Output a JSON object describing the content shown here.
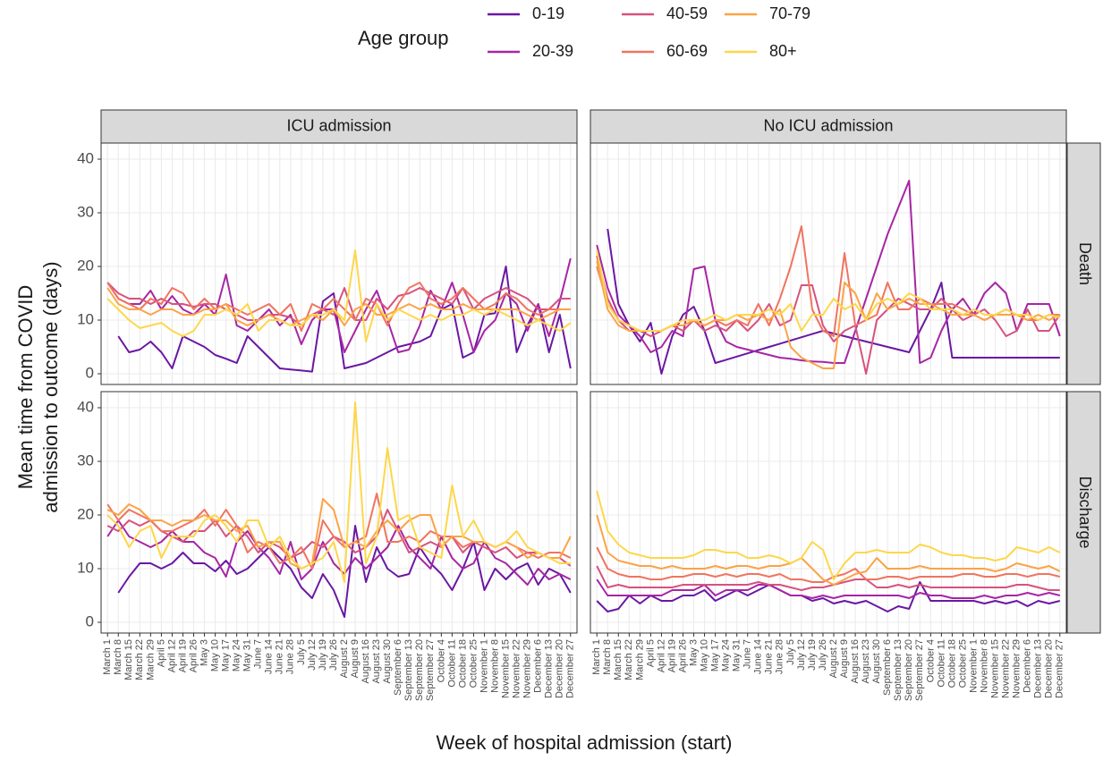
{
  "chart_data": {
    "type": "line",
    "legend_title": "Age group",
    "x_label": "Week of hospital admission (start)",
    "y_label": [
      "Mean time from COVID",
      "admission to outcome (days)"
    ],
    "facet_columns": [
      "ICU admission",
      "No ICU admission"
    ],
    "facet_rows": [
      "Death",
      "Discharge"
    ],
    "categories": [
      "March 1",
      "March 8",
      "March 15",
      "March 22",
      "March 29",
      "April 5",
      "April 12",
      "April 19",
      "April 26",
      "May 3",
      "May 10",
      "May 17",
      "May 24",
      "May 31",
      "June 7",
      "June 14",
      "June 21",
      "June 28",
      "July 5",
      "July 12",
      "July 19",
      "July 26",
      "August 2",
      "August 9",
      "August 16",
      "August 23",
      "August 30",
      "September 6",
      "September 13",
      "September 20",
      "September 27",
      "October 4",
      "October 11",
      "October 18",
      "October 25",
      "November 1",
      "November 8",
      "November 15",
      "November 22",
      "November 29",
      "December 6",
      "December 13",
      "December 20",
      "December 27"
    ],
    "series": [
      {
        "name": "0-19",
        "color": "#6a17a3"
      },
      {
        "name": "20-39",
        "color": "#a626a4"
      },
      {
        "name": "40-59",
        "color": "#d6527f"
      },
      {
        "name": "60-69",
        "color": "#f07460"
      },
      {
        "name": "70-79",
        "color": "#fba346"
      },
      {
        "name": "80+",
        "color": "#fdd74a"
      }
    ],
    "ylim": [
      -2,
      43
    ],
    "yticks": [
      0,
      10,
      20,
      30,
      40
    ],
    "grid": true,
    "panels": [
      [
        [
          [
            null,
            7,
            4,
            4.5,
            6,
            4,
            1,
            7,
            6,
            5,
            3.5,
            2.8,
            2,
            7,
            5,
            3,
            1,
            0.8,
            0.6,
            0.4,
            13.5,
            15,
            1,
            1.5,
            2,
            3,
            4,
            5,
            5.5,
            6,
            7,
            12,
            13,
            3,
            4,
            11,
            11.3,
            20,
            4,
            9,
            13,
            4,
            11,
            1
          ],
          [
            17,
            14,
            13,
            13,
            15.5,
            12,
            14.5,
            12,
            11,
            13,
            11,
            18.5,
            9,
            8,
            10,
            12,
            9,
            11,
            5.5,
            10,
            12,
            12,
            4,
            8,
            12,
            15.5,
            10,
            4,
            4.5,
            9,
            15.5,
            12,
            17,
            11,
            4,
            8,
            10,
            15,
            13,
            8,
            13,
            7,
            13.5,
            21.5
          ],
          [
            17,
            15,
            14,
            14,
            13,
            14,
            13,
            13,
            12.5,
            13,
            13,
            12,
            11,
            10,
            10,
            11,
            11,
            10.5,
            9,
            11,
            12,
            11,
            16,
            10,
            10,
            14,
            12,
            14.5,
            15,
            16,
            15,
            14,
            13,
            16,
            12,
            14,
            15,
            16,
            15,
            14,
            12,
            12,
            14,
            14
          ],
          [
            17,
            14,
            13,
            12,
            14,
            13,
            16,
            15,
            12,
            14,
            12,
            13,
            12,
            11,
            12,
            13,
            11,
            13,
            8,
            13,
            12,
            14,
            12,
            10,
            14,
            13,
            9,
            13,
            16,
            17,
            14,
            13,
            14,
            16,
            14,
            12,
            13,
            15,
            14,
            12,
            11,
            12,
            12,
            12
          ],
          [
            16,
            13,
            12,
            12,
            11,
            12,
            12,
            11,
            11,
            12,
            12,
            13,
            10,
            9,
            10,
            11,
            10,
            9,
            10,
            11,
            10,
            12,
            9,
            12,
            13,
            11,
            11,
            12,
            13,
            12,
            13,
            12,
            12,
            13,
            12,
            12,
            12,
            12,
            12,
            11,
            10,
            11,
            12,
            12
          ],
          [
            14,
            12,
            10,
            8.5,
            9,
            9.5,
            8,
            7,
            8,
            11,
            11,
            12,
            11,
            13,
            8,
            10,
            10,
            9,
            9,
            11,
            11,
            12,
            10,
            23,
            6,
            13,
            10,
            12,
            11,
            10,
            11,
            10,
            11,
            11,
            12,
            11,
            12,
            11,
            10,
            9,
            10,
            9,
            8,
            9.5
          ]
        ],
        [
          [
            null,
            27,
            13,
            9,
            6,
            9.5,
            0,
            7,
            11,
            12.5,
            8,
            2,
            2.6,
            3.2,
            3.8,
            4.4,
            5,
            5.6,
            6.2,
            6.8,
            7.4,
            8,
            7.5,
            7,
            6.5,
            6,
            5.5,
            5,
            4.5,
            4,
            8,
            12,
            17,
            3,
            3,
            3,
            3,
            3,
            3,
            3,
            3,
            3,
            3,
            3
          ],
          [
            24,
            16,
            11,
            9,
            7,
            4,
            5,
            8,
            7,
            19.5,
            20,
            10,
            6,
            5,
            4.5,
            4,
            3.5,
            3,
            2.8,
            2.5,
            2.3,
            2.2,
            2,
            2,
            8,
            14,
            20,
            26,
            31,
            36,
            2,
            3,
            8,
            12,
            14,
            11,
            15,
            17,
            15,
            8,
            13,
            13,
            13,
            7
          ],
          [
            22,
            14,
            10,
            8,
            8,
            7,
            8,
            9,
            8,
            10,
            8,
            9,
            8,
            10,
            8,
            10,
            13,
            9,
            10,
            16.5,
            16.5,
            9,
            6,
            8,
            9,
            0,
            10,
            12,
            14,
            13,
            12,
            12,
            14,
            12,
            10,
            11,
            12,
            10,
            7,
            8,
            12,
            8,
            8,
            11
          ],
          [
            20,
            13,
            10,
            9,
            8,
            8,
            8,
            9,
            9,
            10,
            9,
            10,
            9,
            10,
            9,
            13,
            9,
            14,
            20,
            27.5,
            12,
            8,
            7,
            22.5,
            9,
            10,
            11,
            17,
            12,
            12,
            14,
            13,
            13,
            13,
            12,
            11,
            10,
            11,
            12,
            11,
            10,
            10,
            11,
            11
          ],
          [
            21,
            12,
            9,
            8,
            8,
            8,
            8,
            9,
            9,
            10,
            9,
            10,
            10,
            11,
            10,
            11,
            10,
            12,
            5,
            3,
            2,
            1,
            1,
            17,
            15,
            10,
            15,
            12,
            13,
            14,
            13,
            13,
            12,
            11,
            11,
            11,
            10,
            11,
            11,
            11,
            10,
            11,
            10,
            11
          ],
          [
            23,
            13,
            10,
            9,
            8,
            8,
            8,
            9,
            10,
            10,
            10,
            11,
            10,
            11,
            11,
            11,
            12,
            11,
            13,
            8,
            11,
            11,
            14,
            12,
            13,
            10,
            13,
            14,
            13,
            15,
            14,
            12,
            12,
            12,
            11,
            12,
            11,
            11,
            12,
            11,
            11,
            10,
            11,
            10.5
          ]
        ]
      ],
      [
        [
          [
            null,
            5.5,
            8.5,
            11,
            11,
            10,
            11,
            13,
            11,
            11,
            9.5,
            11.5,
            9,
            10,
            12,
            14,
            12,
            10,
            6.5,
            4.5,
            9,
            6,
            1,
            18,
            7.5,
            14,
            10,
            8.5,
            9,
            14,
            11,
            9,
            6,
            10,
            15,
            6,
            10,
            8,
            10,
            11,
            7,
            10,
            9,
            5.5
          ],
          [
            16,
            19,
            16,
            15,
            14,
            15,
            17,
            15,
            15,
            13,
            12,
            8.5,
            15,
            17,
            14,
            12,
            9,
            15,
            8,
            10,
            15,
            11,
            9,
            12,
            10,
            12,
            14,
            18,
            14,
            12,
            10,
            16,
            12,
            10,
            11,
            15,
            12,
            11,
            9,
            7,
            10,
            8,
            9,
            8
          ],
          [
            18,
            17,
            19,
            18,
            19,
            17,
            16,
            15,
            17,
            17,
            19,
            16,
            18,
            16,
            13,
            15,
            14,
            12,
            13,
            15,
            14,
            16,
            15,
            13,
            14,
            16,
            21,
            17,
            13,
            14,
            15,
            14,
            16,
            13,
            15,
            14,
            13,
            14,
            12,
            13,
            13,
            12,
            12,
            10.5
          ],
          [
            22,
            19,
            21,
            20,
            19,
            17,
            17,
            18,
            19,
            21,
            18,
            21,
            18,
            13,
            15,
            14,
            11,
            12,
            14,
            10,
            19,
            16,
            14,
            15,
            16,
            24,
            15,
            15,
            16,
            15,
            17,
            16,
            16,
            14,
            15,
            15,
            14,
            15,
            14,
            13,
            12,
            13,
            13,
            12
          ],
          [
            21,
            20,
            22,
            21,
            19,
            19,
            18,
            19,
            19,
            20,
            19,
            19,
            17,
            18,
            14,
            15,
            15,
            11,
            10,
            11,
            23,
            21,
            14,
            15,
            14,
            17,
            19,
            17,
            19,
            20,
            20,
            14,
            16,
            16,
            15,
            15,
            14,
            15,
            14,
            12,
            13,
            12,
            12,
            16
          ],
          [
            20,
            18,
            14,
            17,
            18,
            12,
            16,
            16,
            16,
            19,
            20,
            18,
            15,
            19,
            19,
            14,
            16,
            12,
            10,
            11,
            12,
            15,
            7.5,
            41,
            11,
            16,
            32.5,
            19,
            20,
            14,
            13,
            12,
            25.5,
            16,
            19,
            15,
            14,
            15,
            17,
            14,
            13,
            12,
            11,
            11
          ]
        ],
        [
          [
            4,
            2,
            2.5,
            5,
            3.5,
            5,
            4,
            4,
            5,
            5,
            6,
            4,
            5,
            6,
            5,
            6,
            7,
            6,
            5,
            5,
            4,
            4.5,
            3.5,
            4,
            3.5,
            4,
            3,
            2,
            3,
            2.5,
            7.5,
            4,
            4,
            4,
            4,
            4,
            3.5,
            4,
            3.5,
            4,
            3,
            4,
            3.5,
            4
          ],
          [
            8,
            5,
            5,
            5,
            5,
            5,
            5,
            6,
            6,
            6,
            7,
            5,
            6,
            6,
            6,
            7,
            7,
            6,
            5,
            5,
            4.5,
            5,
            4.5,
            5,
            5,
            5,
            5,
            5,
            5,
            4.5,
            5.5,
            5,
            5,
            4.5,
            4.5,
            4.5,
            5,
            4.5,
            5,
            5,
            5.5,
            5,
            5.5,
            5
          ],
          [
            10.5,
            6.5,
            7,
            6.5,
            6.5,
            6.5,
            6.5,
            6.5,
            7,
            7,
            7,
            7,
            7,
            7,
            7,
            7.5,
            7,
            7,
            6.5,
            6,
            6.5,
            6.5,
            7,
            7.5,
            8,
            8,
            6.5,
            6.5,
            7,
            6.5,
            7,
            6.5,
            6.5,
            6.5,
            6.5,
            6.5,
            6.5,
            6.5,
            6.5,
            7,
            7,
            6.5,
            6,
            6
          ],
          [
            14,
            10,
            9,
            8.5,
            8.5,
            8,
            8,
            8.5,
            8.5,
            9,
            9,
            8.5,
            9,
            8.5,
            9,
            9,
            8.5,
            9,
            8,
            8,
            7.5,
            7.5,
            8.5,
            9,
            10,
            8,
            8,
            8.5,
            8.5,
            8,
            8.5,
            8.5,
            8.5,
            8.5,
            9,
            9,
            8.5,
            8.5,
            9,
            9,
            8.5,
            9,
            9,
            8.5
          ],
          [
            20,
            13,
            11.5,
            11,
            10.5,
            10.5,
            10,
            10.5,
            10,
            10,
            10,
            10.5,
            10,
            10.5,
            10.5,
            10,
            10.5,
            10.5,
            11,
            12,
            10,
            8,
            7,
            8,
            9,
            9.5,
            12,
            10,
            10,
            10,
            10.5,
            10,
            10,
            10,
            10,
            10,
            10,
            9.5,
            10,
            11,
            10.5,
            10,
            10.5,
            9.5
          ],
          [
            24.5,
            17,
            14.5,
            13,
            12.5,
            12,
            12,
            12,
            12,
            12.5,
            13.5,
            13.5,
            13,
            13,
            12,
            12,
            12.5,
            12,
            11,
            12,
            15,
            13.5,
            8,
            11,
            13,
            13,
            13.5,
            13,
            13,
            13,
            14.5,
            14,
            13,
            12.5,
            12.5,
            12,
            12,
            11.5,
            12,
            14,
            13.5,
            13,
            14,
            13
          ]
        ]
      ]
    ]
  }
}
